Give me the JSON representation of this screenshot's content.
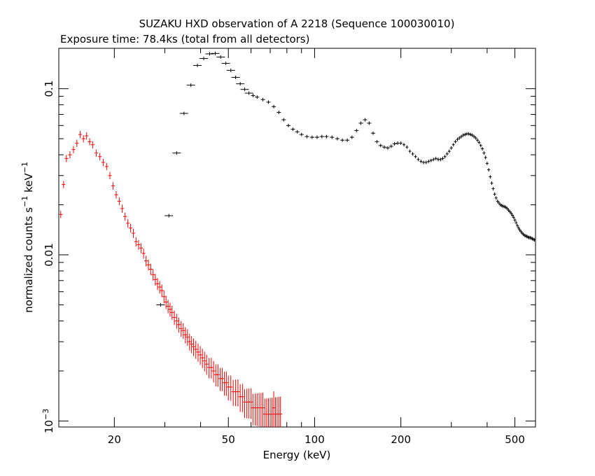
{
  "chart_data": {
    "type": "scatter",
    "title": "SUZAKU HXD observation of A 2218 (Sequence 100030010)",
    "subtitle": "Exposure time: 78.4ks (total from all detectors)",
    "xlabel": "Energy (keV)",
    "ylabel": {
      "base": "normalized counts s",
      "sup1": "−1",
      "mid": " keV",
      "sup2": "−1"
    },
    "x_scale": "log",
    "y_scale": "log",
    "xlim": [
      12.8,
      590
    ],
    "ylim": [
      0.00092,
      0.175
    ],
    "x_ticks": [
      {
        "value": 20,
        "label": "20"
      },
      {
        "value": 50,
        "label": "50"
      },
      {
        "value": 100,
        "label": "100"
      },
      {
        "value": 200,
        "label": "200"
      },
      {
        "value": 500,
        "label": "500"
      }
    ],
    "y_ticks": [
      {
        "value": 0.001,
        "label": "10",
        "sup": "−3"
      },
      {
        "value": 0.01,
        "label": "0.01"
      },
      {
        "value": 0.1,
        "label": "0.1"
      }
    ],
    "grid": false,
    "legend": "none",
    "series": [
      {
        "color": "#ff0000",
        "points": [
          [
            13.0,
            0.0175
          ],
          [
            13.3,
            0.0265
          ],
          [
            13.6,
            0.038
          ],
          [
            14.0,
            0.04
          ],
          [
            14.4,
            0.043
          ],
          [
            14.8,
            0.047
          ],
          [
            15.2,
            0.053
          ],
          [
            15.6,
            0.05
          ],
          [
            16.0,
            0.052
          ],
          [
            16.4,
            0.048
          ],
          [
            16.8,
            0.046
          ],
          [
            17.3,
            0.041
          ],
          [
            17.8,
            0.039
          ],
          [
            18.3,
            0.036
          ],
          [
            18.8,
            0.034
          ],
          [
            19.3,
            0.03
          ],
          [
            19.8,
            0.026
          ],
          [
            20.3,
            0.023
          ],
          [
            20.8,
            0.021
          ],
          [
            21.3,
            0.019
          ],
          [
            21.8,
            0.017
          ],
          [
            22.3,
            0.0155
          ],
          [
            22.8,
            0.0145
          ],
          [
            23.3,
            0.0135
          ],
          [
            23.8,
            0.012
          ],
          [
            24.3,
            0.0115
          ],
          [
            24.8,
            0.011
          ],
          [
            25.3,
            0.0102
          ],
          [
            25.8,
            0.0092
          ],
          [
            26.3,
            0.0087
          ],
          [
            26.8,
            0.0082
          ],
          [
            27.3,
            0.0076
          ],
          [
            27.8,
            0.0071
          ],
          [
            28.3,
            0.0067
          ],
          [
            28.8,
            0.0064
          ],
          [
            29.3,
            0.0061
          ],
          [
            29.8,
            0.0056
          ],
          [
            30.3,
            0.0052
          ],
          [
            30.8,
            0.0049
          ],
          [
            31.3,
            0.0047
          ],
          [
            31.8,
            0.0045
          ],
          [
            32.4,
            0.0042
          ],
          [
            33.0,
            0.004
          ],
          [
            33.6,
            0.0038
          ],
          [
            34.2,
            0.0036
          ],
          [
            34.8,
            0.0035
          ],
          [
            35.4,
            0.0033
          ],
          [
            36.0,
            0.0032
          ],
          [
            36.6,
            0.003
          ],
          [
            37.2,
            0.0029
          ],
          [
            37.8,
            0.0028
          ],
          [
            38.5,
            0.0027
          ],
          [
            39.2,
            0.0026
          ],
          [
            39.9,
            0.0025
          ],
          [
            40.6,
            0.0024
          ],
          [
            41.3,
            0.0023
          ],
          [
            42.0,
            0.0022
          ],
          [
            42.8,
            0.0021
          ],
          [
            43.6,
            0.0021
          ],
          [
            44.4,
            0.002
          ],
          [
            45.2,
            0.0019
          ],
          [
            46.0,
            0.0019
          ],
          [
            46.8,
            0.0018
          ],
          [
            47.6,
            0.0018
          ],
          [
            48.4,
            0.0017
          ],
          [
            49.2,
            0.0017
          ],
          [
            50.0,
            0.0016
          ],
          [
            51.0,
            0.0016
          ],
          [
            52.0,
            0.0015
          ],
          [
            53.0,
            0.0015
          ],
          [
            54.0,
            0.0015
          ],
          [
            55.0,
            0.0014
          ],
          [
            56.0,
            0.0014
          ],
          [
            57.0,
            0.0013
          ],
          [
            58.0,
            0.0013
          ],
          [
            59.0,
            0.0013
          ],
          [
            60.0,
            0.0013
          ],
          [
            61.0,
            0.0012
          ],
          [
            62.0,
            0.0012
          ],
          [
            63.0,
            0.0012
          ],
          [
            64.0,
            0.0012
          ],
          [
            65.0,
            0.0012
          ],
          [
            66.0,
            0.0012
          ],
          [
            67.0,
            0.0011
          ],
          [
            68.0,
            0.0011
          ],
          [
            69.0,
            0.0011
          ],
          [
            70.0,
            0.0011
          ],
          [
            71.0,
            0.0011
          ],
          [
            72.0,
            0.0012
          ],
          [
            73.0,
            0.0011
          ],
          [
            74.0,
            0.0011
          ],
          [
            75.0,
            0.0011
          ],
          [
            76.0,
            0.0011
          ]
        ]
      },
      {
        "color": "#000000",
        "points": [
          [
            29.0,
            0.005
          ],
          [
            31.0,
            0.0172
          ],
          [
            33.0,
            0.041
          ],
          [
            35.0,
            0.071
          ],
          [
            37.0,
            0.105
          ],
          [
            39.0,
            0.138
          ],
          [
            41.0,
            0.152
          ],
          [
            43.0,
            0.162
          ],
          [
            45.0,
            0.163
          ],
          [
            47.0,
            0.155
          ],
          [
            49.0,
            0.142
          ],
          [
            51.0,
            0.129
          ],
          [
            53.0,
            0.117
          ],
          [
            55.0,
            0.107
          ],
          [
            57.0,
            0.099
          ],
          [
            59.0,
            0.094
          ],
          [
            61.0,
            0.091
          ],
          [
            63.0,
            0.089
          ],
          [
            66.0,
            0.086
          ],
          [
            69.0,
            0.083
          ],
          [
            72.0,
            0.078
          ],
          [
            75.0,
            0.072
          ],
          [
            78.0,
            0.065
          ],
          [
            81.0,
            0.06
          ],
          [
            84.0,
            0.057
          ],
          [
            87.0,
            0.055
          ],
          [
            90.0,
            0.053
          ],
          [
            94.0,
            0.0515
          ],
          [
            98.0,
            0.051
          ],
          [
            102.0,
            0.051
          ],
          [
            106.0,
            0.0515
          ],
          [
            110.0,
            0.0515
          ],
          [
            115.0,
            0.051
          ],
          [
            120.0,
            0.05
          ],
          [
            125.0,
            0.049
          ],
          [
            130.0,
            0.049
          ],
          [
            135.0,
            0.051
          ],
          [
            140.0,
            0.056
          ],
          [
            145.0,
            0.062
          ],
          [
            150.0,
            0.065
          ],
          [
            155.0,
            0.062
          ],
          [
            160.0,
            0.054
          ],
          [
            165.0,
            0.048
          ],
          [
            170.0,
            0.0455
          ],
          [
            175.0,
            0.0445
          ],
          [
            180.0,
            0.044
          ],
          [
            185.0,
            0.045
          ],
          [
            190.0,
            0.0465
          ],
          [
            195.0,
            0.047
          ],
          [
            200.0,
            0.047
          ],
          [
            205.0,
            0.046
          ],
          [
            210.0,
            0.0445
          ],
          [
            215.0,
            0.042
          ],
          [
            220.0,
            0.0405
          ],
          [
            225.0,
            0.039
          ],
          [
            230.0,
            0.0375
          ],
          [
            235.0,
            0.0365
          ],
          [
            240.0,
            0.036
          ],
          [
            245.0,
            0.036
          ],
          [
            250.0,
            0.0365
          ],
          [
            255.0,
            0.037
          ],
          [
            260.0,
            0.0375
          ],
          [
            265.0,
            0.038
          ],
          [
            270.0,
            0.0375
          ],
          [
            275.0,
            0.0375
          ],
          [
            280.0,
            0.038
          ],
          [
            285.0,
            0.039
          ],
          [
            290.0,
            0.0405
          ],
          [
            295.0,
            0.042
          ],
          [
            300.0,
            0.044
          ],
          [
            305.0,
            0.046
          ],
          [
            310.0,
            0.048
          ],
          [
            315.0,
            0.0495
          ],
          [
            320.0,
            0.0505
          ],
          [
            325.0,
            0.0515
          ],
          [
            330.0,
            0.0525
          ],
          [
            335.0,
            0.053
          ],
          [
            340.0,
            0.0535
          ],
          [
            345.0,
            0.0535
          ],
          [
            350.0,
            0.053
          ],
          [
            355.0,
            0.0525
          ],
          [
            360.0,
            0.0515
          ],
          [
            365.0,
            0.0505
          ],
          [
            370.0,
            0.049
          ],
          [
            375.0,
            0.0475
          ],
          [
            380.0,
            0.0455
          ],
          [
            385.0,
            0.0435
          ],
          [
            390.0,
            0.041
          ],
          [
            395.0,
            0.0385
          ],
          [
            400.0,
            0.0355
          ],
          [
            405.0,
            0.0325
          ],
          [
            410.0,
            0.0295
          ],
          [
            415.0,
            0.027
          ],
          [
            420.0,
            0.025
          ],
          [
            425.0,
            0.0232
          ],
          [
            430.0,
            0.022
          ],
          [
            435.0,
            0.021
          ],
          [
            440.0,
            0.0205
          ],
          [
            445.0,
            0.02
          ],
          [
            450.0,
            0.0198
          ],
          [
            455.0,
            0.0196
          ],
          [
            460.0,
            0.0195
          ],
          [
            465.0,
            0.0193
          ],
          [
            470.0,
            0.019
          ],
          [
            475.0,
            0.0186
          ],
          [
            480.0,
            0.0182
          ],
          [
            485.0,
            0.0178
          ],
          [
            490.0,
            0.0173
          ],
          [
            495.0,
            0.0168
          ],
          [
            500.0,
            0.0162
          ],
          [
            505.0,
            0.0156
          ],
          [
            510.0,
            0.015
          ],
          [
            515.0,
            0.0145
          ],
          [
            520.0,
            0.0141
          ],
          [
            525.0,
            0.0138
          ],
          [
            530.0,
            0.0135
          ],
          [
            535.0,
            0.0133
          ],
          [
            540.0,
            0.0131
          ],
          [
            545.0,
            0.013
          ],
          [
            550.0,
            0.0129
          ],
          [
            555.0,
            0.0128
          ],
          [
            560.0,
            0.0127
          ],
          [
            565.0,
            0.0127
          ],
          [
            570.0,
            0.0126
          ],
          [
            575.0,
            0.0125
          ],
          [
            580.0,
            0.0124
          ],
          [
            585.0,
            0.0123
          ]
        ]
      }
    ]
  }
}
